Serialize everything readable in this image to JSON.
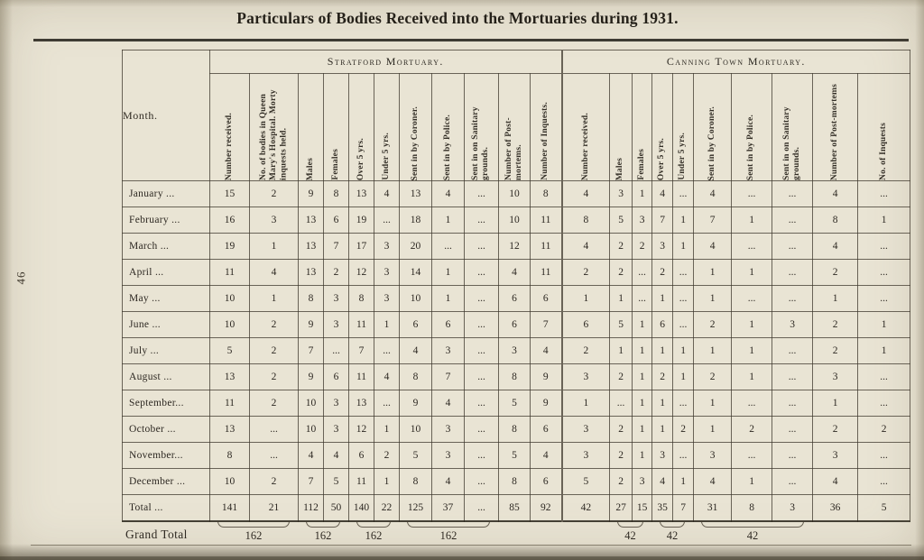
{
  "page": {
    "title": "Particulars of Bodies Received into the Mortuaries during 1931.",
    "page_number": "46"
  },
  "table": {
    "month_header": "Month.",
    "groups": [
      {
        "label": "Stratford Mortuary.",
        "columns": [
          "Number received.",
          "No. of bodies in Queen Mary's Hospital. Morty inquests held.",
          "Males",
          "Females",
          "Over 5 yrs.",
          "Under 5 yrs.",
          "Sent in by Coroner.",
          "Sent in by Police.",
          "Sent in on Sanitary grounds.",
          "Number of Post-mortems.",
          "Number of Inquests."
        ]
      },
      {
        "label": "Canning Town Mortuary.",
        "columns": [
          "Number received.",
          "Males",
          "Females",
          "Over 5 yrs.",
          "Under 5 yrs.",
          "Sent in by Coroner.",
          "Sent in by Police.",
          "Sent in on Sanitary grounds.",
          "Number of Post-mortems",
          "No. of Inquests"
        ]
      }
    ],
    "rows": [
      {
        "month": "January ...",
        "values": [
          "15",
          "2",
          "9",
          "8",
          "13",
          "4",
          "13",
          "4",
          "...",
          "10",
          "8",
          "4",
          "3",
          "1",
          "4",
          "...",
          "4",
          "...",
          "...",
          "4",
          "..."
        ]
      },
      {
        "month": "February ...",
        "values": [
          "16",
          "3",
          "13",
          "6",
          "19",
          "...",
          "18",
          "1",
          "...",
          "10",
          "11",
          "8",
          "5",
          "3",
          "7",
          "1",
          "7",
          "1",
          "...",
          "8",
          "1"
        ]
      },
      {
        "month": "March ...",
        "values": [
          "19",
          "1",
          "13",
          "7",
          "17",
          "3",
          "20",
          "...",
          "...",
          "12",
          "11",
          "4",
          "2",
          "2",
          "3",
          "1",
          "4",
          "...",
          "...",
          "4",
          "..."
        ]
      },
      {
        "month": "April ...",
        "values": [
          "11",
          "4",
          "13",
          "2",
          "12",
          "3",
          "14",
          "1",
          "...",
          "4",
          "11",
          "2",
          "2",
          "...",
          "2",
          "...",
          "1",
          "1",
          "...",
          "2",
          "..."
        ]
      },
      {
        "month": "May ...",
        "values": [
          "10",
          "1",
          "8",
          "3",
          "8",
          "3",
          "10",
          "1",
          "...",
          "6",
          "6",
          "1",
          "1",
          "...",
          "1",
          "...",
          "1",
          "...",
          "...",
          "1",
          "..."
        ]
      },
      {
        "month": "June ...",
        "values": [
          "10",
          "2",
          "9",
          "3",
          "11",
          "1",
          "6",
          "6",
          "...",
          "6",
          "7",
          "6",
          "5",
          "1",
          "6",
          "...",
          "2",
          "1",
          "3",
          "2",
          "1"
        ]
      },
      {
        "month": "July ...",
        "values": [
          "5",
          "2",
          "7",
          "...",
          "7",
          "...",
          "4",
          "3",
          "...",
          "3",
          "4",
          "2",
          "1",
          "1",
          "1",
          "1",
          "1",
          "1",
          "...",
          "2",
          "1"
        ]
      },
      {
        "month": "August ...",
        "values": [
          "13",
          "2",
          "9",
          "6",
          "11",
          "4",
          "8",
          "7",
          "...",
          "8",
          "9",
          "3",
          "2",
          "1",
          "2",
          "1",
          "2",
          "1",
          "...",
          "3",
          "..."
        ]
      },
      {
        "month": "September...",
        "values": [
          "11",
          "2",
          "10",
          "3",
          "13",
          "...",
          "9",
          "4",
          "...",
          "5",
          "9",
          "1",
          "...",
          "1",
          "1",
          "...",
          "1",
          "...",
          "...",
          "1",
          "..."
        ]
      },
      {
        "month": "October ...",
        "values": [
          "13",
          "...",
          "10",
          "3",
          "12",
          "1",
          "10",
          "3",
          "...",
          "8",
          "6",
          "3",
          "2",
          "1",
          "1",
          "2",
          "1",
          "2",
          "...",
          "2",
          "2"
        ]
      },
      {
        "month": "November...",
        "values": [
          "8",
          "...",
          "4",
          "4",
          "6",
          "2",
          "5",
          "3",
          "...",
          "5",
          "4",
          "3",
          "2",
          "1",
          "3",
          "...",
          "3",
          "...",
          "...",
          "3",
          "..."
        ]
      },
      {
        "month": "December ...",
        "values": [
          "10",
          "2",
          "7",
          "5",
          "11",
          "1",
          "8",
          "4",
          "...",
          "8",
          "6",
          "5",
          "2",
          "3",
          "4",
          "1",
          "4",
          "1",
          "...",
          "4",
          "..."
        ]
      },
      {
        "month": "Total ...",
        "total": true,
        "values": [
          "141",
          "21",
          "112",
          "50",
          "140",
          "22",
          "125",
          "37",
          "...",
          "85",
          "92",
          "42",
          "27",
          "15",
          "35",
          "7",
          "31",
          "8",
          "3",
          "36",
          "5"
        ]
      }
    ],
    "grand_total": {
      "label": "Grand Total",
      "values": [
        "162",
        "162",
        "162",
        "162",
        "42",
        "42",
        "42"
      ]
    }
  }
}
